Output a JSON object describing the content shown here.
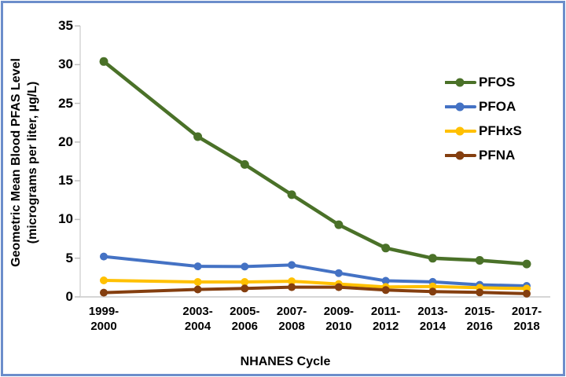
{
  "frame": {
    "border_color": "#6C8ECB",
    "background": "#FFFFFF"
  },
  "chart_data": {
    "type": "line",
    "title": "",
    "xlabel": "NHANES Cycle",
    "ylabel": "Geometric Mean Blood PFAS Level\n(micrograms per liter, µg/L)",
    "categories": [
      "1999-2000",
      "2003-2004",
      "2005-2006",
      "2007-2008",
      "2009-2010",
      "2011-2012",
      "2013-2014",
      "2015-2016",
      "2017-2018"
    ],
    "x_years": [
      2000,
      2004,
      2006,
      2008,
      2010,
      2012,
      2014,
      2016,
      2018
    ],
    "ylim": [
      0,
      35
    ],
    "yticks": [
      0,
      5,
      10,
      15,
      20,
      25,
      30,
      35
    ],
    "grid": false,
    "legend_position": "right",
    "axis_color": "#D6D6D6",
    "tick_color": "#BFBFBF",
    "series": [
      {
        "name": "PFOS",
        "color": "#4A7128",
        "values": [
          30.4,
          20.7,
          17.1,
          13.2,
          9.32,
          6.31,
          4.99,
          4.72,
          4.25
        ]
      },
      {
        "name": "PFOA",
        "color": "#4472C4",
        "values": [
          5.21,
          3.95,
          3.92,
          4.12,
          3.07,
          2.08,
          1.94,
          1.56,
          1.42
        ]
      },
      {
        "name": "PFHxS",
        "color": "#FFC000",
        "values": [
          2.13,
          1.93,
          1.93,
          2.02,
          1.66,
          1.28,
          1.35,
          1.18,
          1.08
        ]
      },
      {
        "name": "PFNA",
        "color": "#843E0F",
        "values": [
          0.551,
          0.966,
          1.09,
          1.26,
          1.26,
          0.881,
          0.675,
          0.577,
          0.411
        ]
      }
    ]
  }
}
